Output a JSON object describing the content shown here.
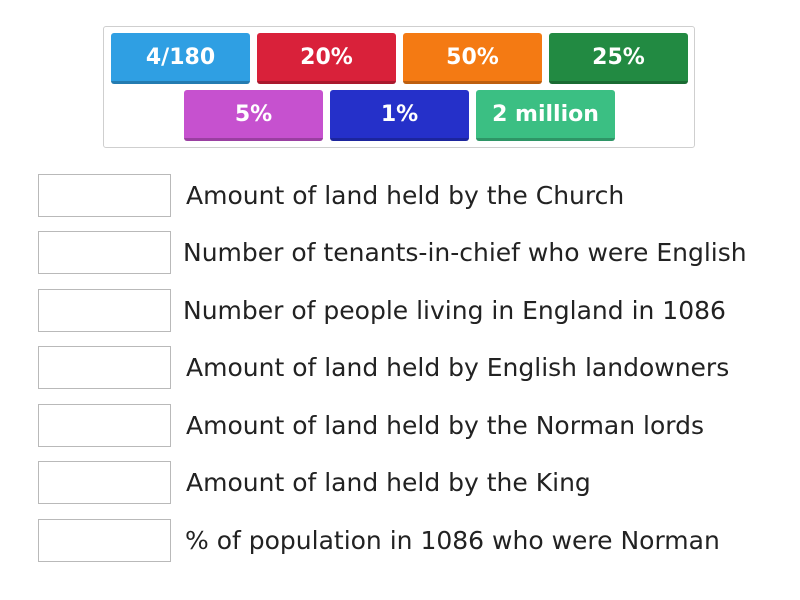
{
  "tiles": [
    {
      "label": "4/180",
      "color": "#2f9fe3"
    },
    {
      "label": "20%",
      "color": "#d9213a"
    },
    {
      "label": "50%",
      "color": "#f47a13"
    },
    {
      "label": "25%",
      "color": "#228a42"
    },
    {
      "label": "5%",
      "color": "#c651cf"
    },
    {
      "label": "1%",
      "color": "#2530c9"
    },
    {
      "label": "2 million",
      "color": "#3bbf83"
    }
  ],
  "rows": [
    {
      "text": "Amount of land held by the Church"
    },
    {
      "text": "Number of tenants-in-chief who were English"
    },
    {
      "text": "Number of people living in England in 1086"
    },
    {
      "text": "Amount of land held by English landowners"
    },
    {
      "text": "Amount of land held by the Norman lords"
    },
    {
      "text": "Amount of land held by the King"
    },
    {
      "text": "% of population in 1086 who were Norman"
    }
  ]
}
